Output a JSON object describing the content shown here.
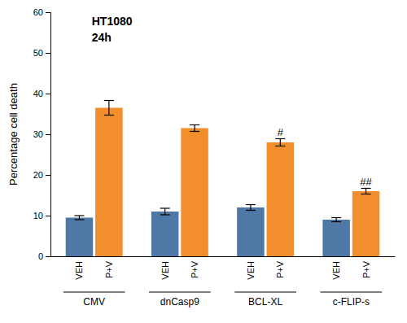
{
  "chart_data": {
    "type": "bar",
    "categories": [
      "CMV",
      "dnCasp9",
      "BCL-XL",
      "c-FLIP-s"
    ],
    "series": [
      {
        "name": "VEH",
        "values": [
          9.5,
          11.0,
          12.0,
          9.0
        ],
        "errors": [
          0.5,
          0.8,
          0.7,
          0.5
        ],
        "annotations": [
          null,
          null,
          null,
          null
        ]
      },
      {
        "name": "P+V",
        "values": [
          36.5,
          31.5,
          28.0,
          16.0
        ],
        "errors": [
          1.8,
          0.8,
          0.9,
          0.7
        ],
        "annotations": [
          null,
          null,
          "#",
          "##"
        ]
      }
    ],
    "ylabel": "Percentage cell death",
    "ylim": [
      0,
      60
    ],
    "yticks": [
      0,
      10,
      20,
      30,
      40,
      50,
      60
    ],
    "inset_text": [
      "HT1080",
      "24h"
    ]
  }
}
